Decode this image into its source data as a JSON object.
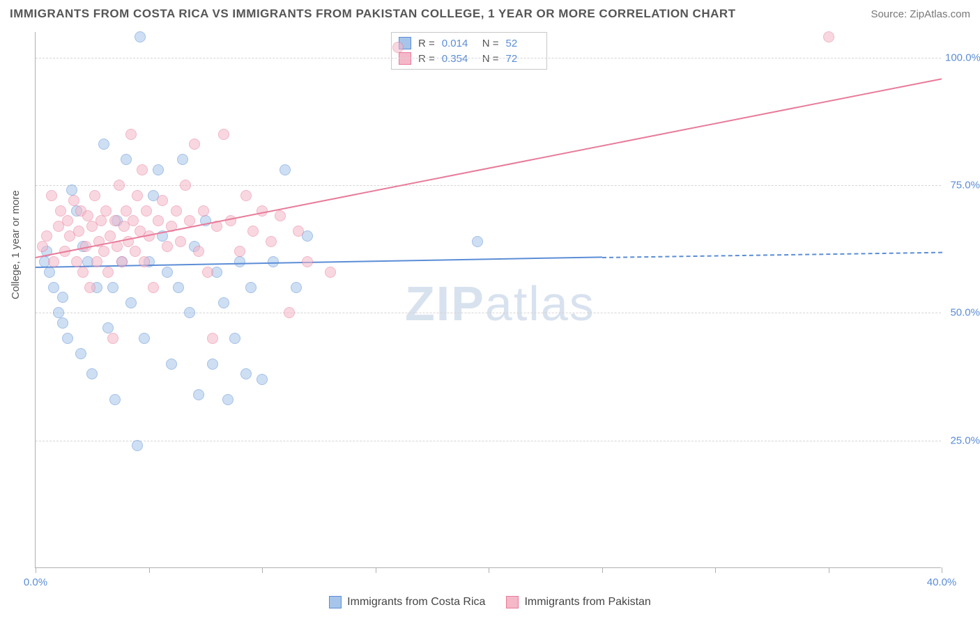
{
  "title": "IMMIGRANTS FROM COSTA RICA VS IMMIGRANTS FROM PAKISTAN COLLEGE, 1 YEAR OR MORE CORRELATION CHART",
  "source": "Source: ZipAtlas.com",
  "ylabel": "College, 1 year or more",
  "watermark_a": "ZIP",
  "watermark_b": "atlas",
  "chart": {
    "type": "scatter",
    "background_color": "#ffffff",
    "grid_color": "#d5d5d5",
    "axis_color": "#b0b0b0",
    "xlim": [
      0,
      40
    ],
    "ylim": [
      0,
      105
    ],
    "xtick_positions": [
      0,
      5,
      10,
      15,
      20,
      25,
      30,
      35,
      40
    ],
    "xtick_labels": {
      "0": "0.0%",
      "40": "40.0%"
    },
    "ytick_positions": [
      25,
      50,
      75,
      100
    ],
    "ytick_labels": [
      "25.0%",
      "50.0%",
      "75.0%",
      "100.0%"
    ],
    "marker_size": 16,
    "marker_opacity": 0.55,
    "line_width": 2,
    "series": [
      {
        "name": "Immigrants from Costa Rica",
        "color_fill": "#a7c5ea",
        "color_stroke": "#5b8dd6",
        "r": "0.014",
        "n": "52",
        "regression": {
          "x1": 0,
          "y1": 59,
          "x2": 25,
          "y2": 61,
          "solid_until_x": 25,
          "dash_to_x": 40,
          "dash_y2": 62
        },
        "points": [
          [
            0.4,
            60
          ],
          [
            0.5,
            62
          ],
          [
            0.6,
            58
          ],
          [
            0.8,
            55
          ],
          [
            1.0,
            50
          ],
          [
            1.2,
            53
          ],
          [
            1.2,
            48
          ],
          [
            1.4,
            45
          ],
          [
            1.6,
            74
          ],
          [
            1.8,
            70
          ],
          [
            2.0,
            42
          ],
          [
            2.1,
            63
          ],
          [
            2.3,
            60
          ],
          [
            2.5,
            38
          ],
          [
            2.7,
            55
          ],
          [
            3.0,
            83
          ],
          [
            3.2,
            47
          ],
          [
            3.4,
            55
          ],
          [
            3.5,
            33
          ],
          [
            3.6,
            68
          ],
          [
            3.8,
            60
          ],
          [
            4.0,
            80
          ],
          [
            4.2,
            52
          ],
          [
            4.5,
            24
          ],
          [
            4.6,
            104
          ],
          [
            4.8,
            45
          ],
          [
            5.0,
            60
          ],
          [
            5.2,
            73
          ],
          [
            5.4,
            78
          ],
          [
            5.6,
            65
          ],
          [
            5.8,
            58
          ],
          [
            6.0,
            40
          ],
          [
            6.3,
            55
          ],
          [
            6.5,
            80
          ],
          [
            6.8,
            50
          ],
          [
            7.0,
            63
          ],
          [
            7.2,
            34
          ],
          [
            7.5,
            68
          ],
          [
            7.8,
            40
          ],
          [
            8.0,
            58
          ],
          [
            8.3,
            52
          ],
          [
            8.5,
            33
          ],
          [
            8.8,
            45
          ],
          [
            9.0,
            60
          ],
          [
            9.3,
            38
          ],
          [
            9.5,
            55
          ],
          [
            10.0,
            37
          ],
          [
            10.5,
            60
          ],
          [
            11.0,
            78
          ],
          [
            11.5,
            55
          ],
          [
            12.0,
            65
          ],
          [
            19.5,
            64
          ]
        ]
      },
      {
        "name": "Immigrants from Pakistan",
        "color_fill": "#f4b8c8",
        "color_stroke": "#e87b9a",
        "r": "0.354",
        "n": "72",
        "regression": {
          "x1": 0,
          "y1": 61,
          "x2": 40,
          "y2": 96,
          "solid_until_x": 40
        },
        "points": [
          [
            0.3,
            63
          ],
          [
            0.5,
            65
          ],
          [
            0.7,
            73
          ],
          [
            0.8,
            60
          ],
          [
            1.0,
            67
          ],
          [
            1.1,
            70
          ],
          [
            1.3,
            62
          ],
          [
            1.4,
            68
          ],
          [
            1.5,
            65
          ],
          [
            1.7,
            72
          ],
          [
            1.8,
            60
          ],
          [
            1.9,
            66
          ],
          [
            2.0,
            70
          ],
          [
            2.1,
            58
          ],
          [
            2.2,
            63
          ],
          [
            2.3,
            69
          ],
          [
            2.4,
            55
          ],
          [
            2.5,
            67
          ],
          [
            2.6,
            73
          ],
          [
            2.7,
            60
          ],
          [
            2.8,
            64
          ],
          [
            2.9,
            68
          ],
          [
            3.0,
            62
          ],
          [
            3.1,
            70
          ],
          [
            3.2,
            58
          ],
          [
            3.3,
            65
          ],
          [
            3.4,
            45
          ],
          [
            3.5,
            68
          ],
          [
            3.6,
            63
          ],
          [
            3.7,
            75
          ],
          [
            3.8,
            60
          ],
          [
            3.9,
            67
          ],
          [
            4.0,
            70
          ],
          [
            4.1,
            64
          ],
          [
            4.2,
            85
          ],
          [
            4.3,
            68
          ],
          [
            4.4,
            62
          ],
          [
            4.5,
            73
          ],
          [
            4.6,
            66
          ],
          [
            4.7,
            78
          ],
          [
            4.8,
            60
          ],
          [
            4.9,
            70
          ],
          [
            5.0,
            65
          ],
          [
            5.2,
            55
          ],
          [
            5.4,
            68
          ],
          [
            5.6,
            72
          ],
          [
            5.8,
            63
          ],
          [
            6.0,
            67
          ],
          [
            6.2,
            70
          ],
          [
            6.4,
            64
          ],
          [
            6.6,
            75
          ],
          [
            6.8,
            68
          ],
          [
            7.0,
            83
          ],
          [
            7.2,
            62
          ],
          [
            7.4,
            70
          ],
          [
            7.6,
            58
          ],
          [
            7.8,
            45
          ],
          [
            8.0,
            67
          ],
          [
            8.3,
            85
          ],
          [
            8.6,
            68
          ],
          [
            9.0,
            62
          ],
          [
            9.3,
            73
          ],
          [
            9.6,
            66
          ],
          [
            10.0,
            70
          ],
          [
            10.4,
            64
          ],
          [
            10.8,
            69
          ],
          [
            11.2,
            50
          ],
          [
            11.6,
            66
          ],
          [
            12.0,
            60
          ],
          [
            13.0,
            58
          ],
          [
            16.0,
            102
          ],
          [
            35.0,
            104
          ]
        ]
      }
    ]
  },
  "legend_top": {
    "r_label": "R =",
    "n_label": "N ="
  },
  "legend_bottom": [
    "Immigrants from Costa Rica",
    "Immigrants from Pakistan"
  ]
}
